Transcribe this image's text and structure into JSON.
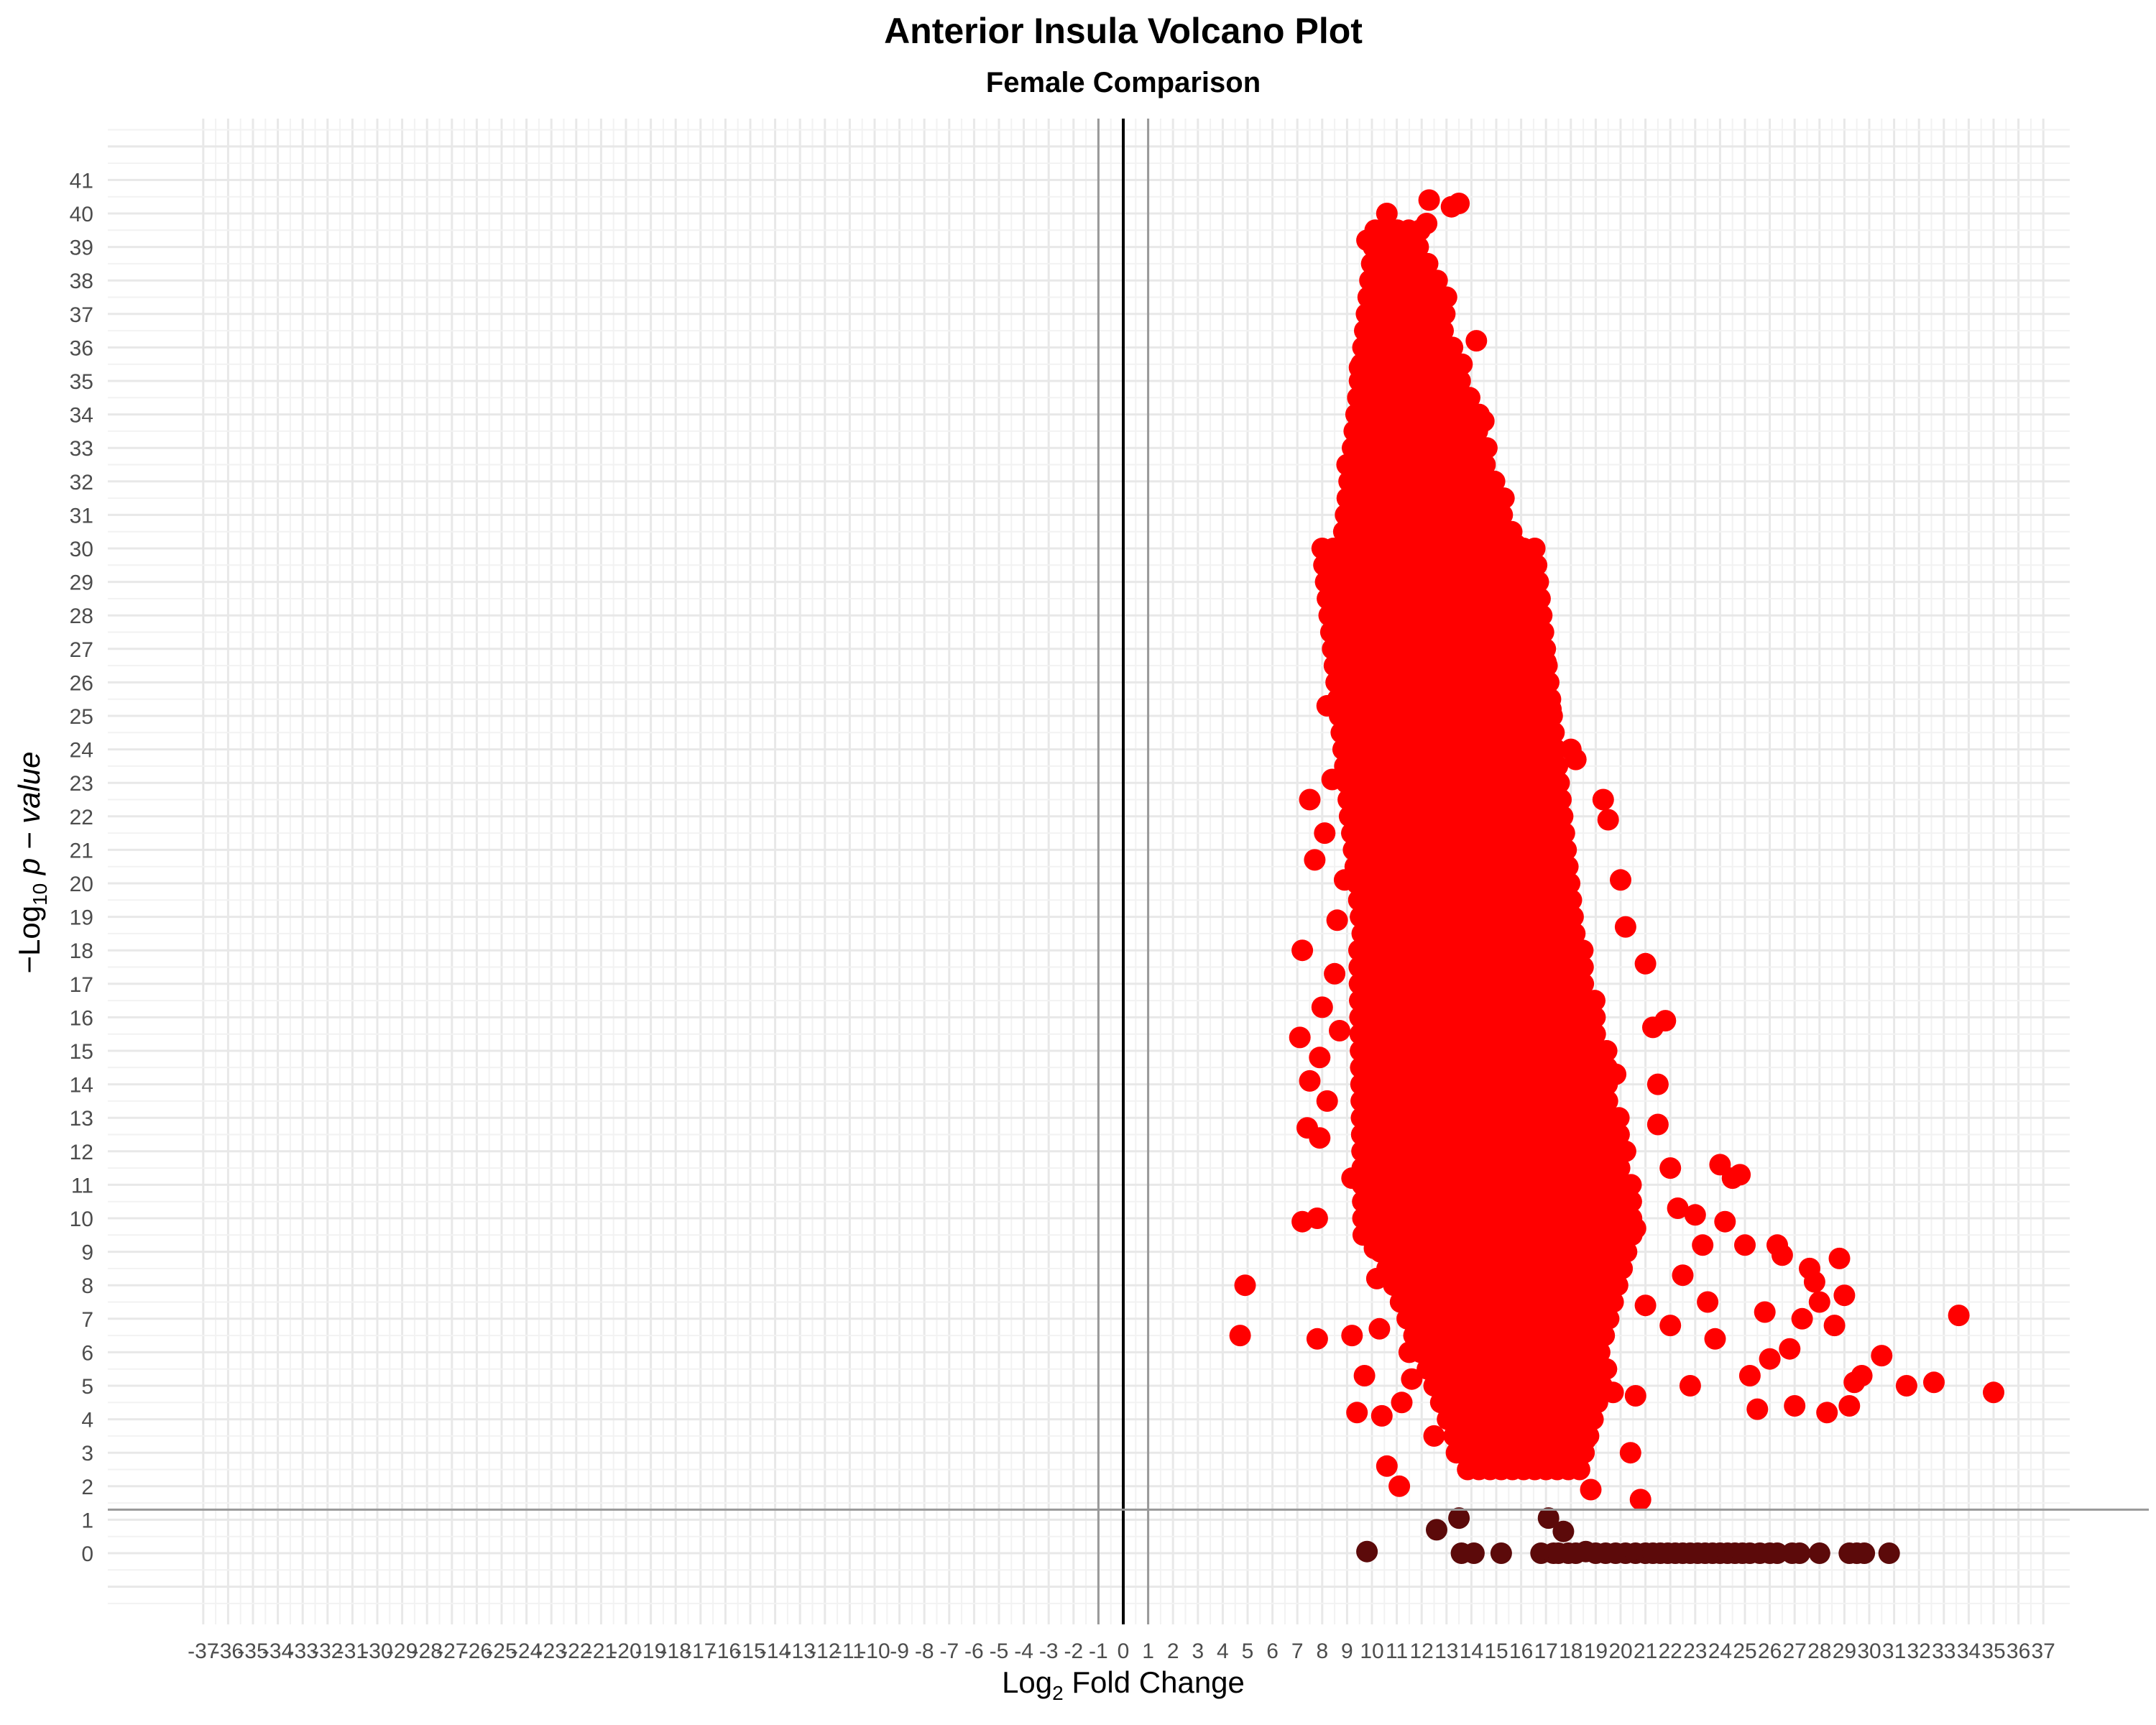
{
  "chart_data": {
    "type": "scatter",
    "title": "Anterior Insula Volcano Plot",
    "subtitle": "Female Comparison",
    "xlabel": {
      "prefix": "Log",
      "sub": "2",
      "suffix": " Fold Change"
    },
    "ylabel": {
      "prefix": "−Log",
      "sub": "10",
      "suffix": " p − value"
    },
    "xlim": [
      -37,
      37
    ],
    "ylim": [
      0,
      41
    ],
    "x_ticks": [
      -37,
      -36,
      -35,
      -34,
      -33,
      -32,
      -31,
      -30,
      -29,
      -28,
      -27,
      -26,
      -25,
      -24,
      -23,
      -22,
      -21,
      -20,
      -19,
      -18,
      -17,
      -16,
      -15,
      -14,
      -13,
      -12,
      -11,
      -10,
      -9,
      -8,
      -7,
      -6,
      -5,
      -4,
      -3,
      -2,
      -1,
      0,
      1,
      2,
      3,
      4,
      5,
      6,
      7,
      8,
      9,
      10,
      11,
      12,
      13,
      14,
      15,
      16,
      17,
      18,
      19,
      20,
      21,
      22,
      23,
      24,
      25,
      26,
      27,
      28,
      29,
      30,
      31,
      32,
      33,
      34,
      35,
      36,
      37
    ],
    "y_ticks": [
      0,
      1,
      2,
      3,
      4,
      5,
      6,
      7,
      8,
      9,
      10,
      11,
      12,
      13,
      14,
      15,
      16,
      17,
      18,
      19,
      20,
      21,
      22,
      23,
      24,
      25,
      26,
      27,
      28,
      29,
      30,
      31,
      32,
      33,
      34,
      35,
      36,
      37,
      38,
      39,
      40,
      41
    ],
    "grid": true,
    "reference_lines": {
      "vertical": [
        -1,
        0,
        1
      ],
      "horizontal": [
        1.3
      ]
    },
    "colors": {
      "significant": "#ff0000",
      "not_significant": "#5c0a0a",
      "zero_line": "#000000",
      "threshold_line": "#999999"
    },
    "series": [
      {
        "values": [
          [
            4.7,
            6.5
          ],
          [
            4.9,
            8.0
          ],
          [
            7.1,
            15.4
          ],
          [
            7.2,
            18.0
          ],
          [
            7.2,
            9.9
          ],
          [
            7.4,
            12.7
          ],
          [
            7.5,
            14.1
          ],
          [
            7.5,
            22.5
          ],
          [
            7.7,
            20.7
          ],
          [
            7.8,
            6.4
          ],
          [
            7.8,
            10.0
          ],
          [
            7.9,
            12.4
          ],
          [
            7.9,
            14.8
          ],
          [
            8.0,
            16.3
          ],
          [
            8.1,
            21.5
          ],
          [
            8.2,
            25.3
          ],
          [
            8.2,
            13.5
          ],
          [
            8.4,
            23.1
          ],
          [
            8.5,
            17.3
          ],
          [
            8.6,
            18.9
          ],
          [
            8.7,
            15.6
          ],
          [
            8.8,
            26.8
          ],
          [
            8.9,
            20.1
          ],
          [
            9.0,
            32.5
          ],
          [
            9.1,
            22.0
          ],
          [
            9.2,
            11.2
          ],
          [
            9.2,
            6.5
          ],
          [
            9.3,
            29.6
          ],
          [
            9.4,
            4.2
          ],
          [
            9.5,
            35.4
          ],
          [
            9.6,
            14.5
          ],
          [
            9.7,
            5.3
          ],
          [
            9.8,
            39.2
          ],
          [
            10.0,
            27.0
          ],
          [
            10.1,
            9.1
          ],
          [
            10.2,
            8.2
          ],
          [
            10.3,
            6.7
          ],
          [
            10.4,
            38.2
          ],
          [
            10.4,
            4.1
          ],
          [
            10.5,
            34.3
          ],
          [
            10.6,
            40.0
          ],
          [
            10.6,
            2.6
          ],
          [
            10.8,
            36.4
          ],
          [
            10.9,
            11.2
          ],
          [
            11.1,
            2.0
          ],
          [
            11.2,
            4.5
          ],
          [
            11.3,
            38.6
          ],
          [
            11.5,
            6.0
          ],
          [
            11.6,
            5.2
          ],
          [
            11.8,
            10.0
          ],
          [
            12.0,
            7.1
          ],
          [
            12.2,
            39.7
          ],
          [
            12.3,
            40.4
          ],
          [
            12.5,
            3.5
          ],
          [
            12.6,
            9.5
          ],
          [
            12.8,
            6.1
          ],
          [
            13.0,
            37.5
          ],
          [
            13.2,
            40.2
          ],
          [
            13.3,
            5.0
          ],
          [
            13.4,
            3.0
          ],
          [
            13.5,
            40.3
          ],
          [
            13.6,
            7.6
          ],
          [
            13.8,
            4.1
          ],
          [
            14.0,
            3.5
          ],
          [
            14.2,
            36.2
          ],
          [
            14.4,
            5.7
          ],
          [
            14.5,
            33.8
          ],
          [
            14.8,
            4.3
          ],
          [
            15.0,
            3.4
          ],
          [
            15.3,
            8.9
          ],
          [
            15.5,
            4.6
          ],
          [
            15.8,
            30.1
          ],
          [
            16.0,
            28.3
          ],
          [
            16.3,
            3.9
          ],
          [
            16.5,
            5.5
          ],
          [
            16.8,
            4.7
          ],
          [
            17.0,
            26.6
          ],
          [
            17.2,
            25.2
          ],
          [
            17.5,
            3.4
          ],
          [
            17.8,
            6.0
          ],
          [
            18.0,
            24.0
          ],
          [
            18.2,
            23.7
          ],
          [
            18.4,
            4.3
          ],
          [
            18.6,
            3.4
          ],
          [
            18.8,
            1.9
          ],
          [
            19.0,
            5.2
          ],
          [
            19.3,
            22.5
          ],
          [
            19.5,
            21.9
          ],
          [
            19.7,
            4.8
          ],
          [
            20.0,
            20.1
          ],
          [
            20.2,
            18.7
          ],
          [
            20.4,
            3.0
          ],
          [
            20.6,
            4.7
          ],
          [
            20.8,
            1.6
          ],
          [
            21.0,
            17.6
          ],
          [
            21.3,
            15.7
          ],
          [
            21.5,
            14.0
          ],
          [
            21.8,
            15.9
          ],
          [
            22.0,
            11.5
          ],
          [
            22.3,
            10.3
          ],
          [
            22.5,
            8.3
          ],
          [
            22.8,
            5.0
          ],
          [
            23.0,
            10.1
          ],
          [
            23.3,
            9.2
          ],
          [
            23.5,
            7.5
          ],
          [
            23.8,
            6.4
          ],
          [
            24.0,
            11.6
          ],
          [
            24.2,
            9.9
          ],
          [
            24.5,
            11.2
          ],
          [
            24.8,
            11.3
          ],
          [
            25.0,
            9.2
          ],
          [
            25.2,
            5.3
          ],
          [
            25.5,
            4.3
          ],
          [
            25.8,
            7.2
          ],
          [
            26.0,
            5.8
          ],
          [
            26.3,
            9.2
          ],
          [
            26.5,
            8.9
          ],
          [
            26.8,
            6.1
          ],
          [
            27.0,
            4.4
          ],
          [
            27.3,
            7.0
          ],
          [
            27.6,
            8.5
          ],
          [
            27.8,
            8.1
          ],
          [
            28.0,
            7.5
          ],
          [
            28.3,
            4.2
          ],
          [
            28.6,
            6.8
          ],
          [
            28.8,
            8.8
          ],
          [
            29.0,
            7.7
          ],
          [
            29.2,
            4.4
          ],
          [
            29.4,
            5.1
          ],
          [
            29.7,
            5.3
          ],
          [
            30.5,
            5.9
          ],
          [
            31.5,
            5.0
          ],
          [
            32.6,
            5.1
          ],
          [
            33.6,
            7.1
          ],
          [
            35.0,
            4.8
          ],
          [
            9.2,
            29.5
          ],
          [
            9.4,
            28.3
          ],
          [
            9.6,
            24.7
          ],
          [
            9.9,
            23.0
          ],
          [
            10.3,
            21.6
          ],
          [
            10.7,
            19.9
          ],
          [
            11.0,
            33.0
          ],
          [
            11.4,
            31.2
          ],
          [
            11.8,
            28.9
          ],
          [
            12.1,
            26.4
          ],
          [
            12.4,
            24.1
          ],
          [
            12.7,
            21.7
          ],
          [
            13.1,
            19.4
          ],
          [
            13.4,
            17.2
          ],
          [
            13.8,
            14.9
          ],
          [
            14.1,
            12.6
          ],
          [
            14.4,
            10.4
          ],
          [
            14.7,
            8.1
          ],
          [
            15.1,
            19.0
          ],
          [
            15.5,
            16.6
          ],
          [
            16.0,
            14.4
          ],
          [
            16.4,
            12.1
          ],
          [
            16.8,
            9.8
          ],
          [
            17.2,
            7.5
          ],
          [
            17.6,
            16.0
          ],
          [
            18.1,
            13.8
          ],
          [
            18.5,
            11.5
          ],
          [
            18.9,
            9.2
          ],
          [
            19.3,
            6.9
          ],
          [
            19.8,
            14.3
          ],
          [
            20.2,
            12.0
          ],
          [
            20.6,
            9.7
          ],
          [
            21.0,
            7.4
          ],
          [
            21.5,
            12.8
          ],
          [
            22.0,
            6.8
          ]
        ]
      },
      {
        "values": [
          [
            9.8,
            0.05
          ],
          [
            12.6,
            0.7
          ],
          [
            13.5,
            1.05
          ],
          [
            13.6,
            0.0
          ],
          [
            14.1,
            0.0
          ],
          [
            15.2,
            0.0
          ],
          [
            16.8,
            0.0
          ],
          [
            17.1,
            1.05
          ],
          [
            17.3,
            0.0
          ],
          [
            17.5,
            0.0
          ],
          [
            17.7,
            0.65
          ],
          [
            17.9,
            0.0
          ],
          [
            18.2,
            0.0
          ],
          [
            18.6,
            0.05
          ],
          [
            19.0,
            0.0
          ],
          [
            19.4,
            0.0
          ],
          [
            19.8,
            0.0
          ],
          [
            20.2,
            0.0
          ],
          [
            20.6,
            0.0
          ],
          [
            21.0,
            0.0
          ],
          [
            21.3,
            0.0
          ],
          [
            21.6,
            0.0
          ],
          [
            21.9,
            0.0
          ],
          [
            22.2,
            0.0
          ],
          [
            22.5,
            0.0
          ],
          [
            22.8,
            0.0
          ],
          [
            23.1,
            0.0
          ],
          [
            23.4,
            0.0
          ],
          [
            23.7,
            0.0
          ],
          [
            24.0,
            0.0
          ],
          [
            24.3,
            0.0
          ],
          [
            24.6,
            0.0
          ],
          [
            24.9,
            0.0
          ],
          [
            25.2,
            0.0
          ],
          [
            25.6,
            0.0
          ],
          [
            26.0,
            0.0
          ],
          [
            26.3,
            0.0
          ],
          [
            26.9,
            0.0
          ],
          [
            27.2,
            0.0
          ],
          [
            28.0,
            0.0
          ],
          [
            29.2,
            0.0
          ],
          [
            29.5,
            0.0
          ],
          [
            29.8,
            0.0
          ],
          [
            30.8,
            0.0
          ]
        ]
      }
    ]
  }
}
